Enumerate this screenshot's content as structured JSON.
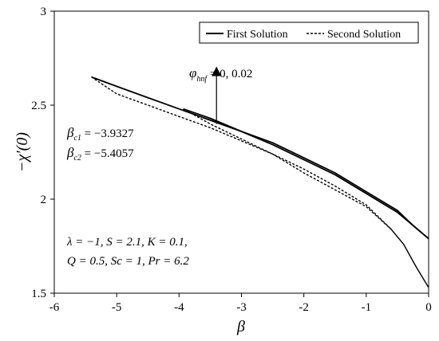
{
  "chart_data": {
    "type": "line",
    "xlabel": "β",
    "ylabel": "−χ′(0)",
    "xlim": [
      -6,
      0
    ],
    "ylim": [
      1.5,
      3
    ],
    "xticks": [
      -6,
      -5,
      -4,
      -3,
      -2,
      -1,
      0
    ],
    "yticks": [
      1.5,
      2,
      2.5,
      3
    ],
    "xtick_labels": [
      "-6",
      "-5",
      "-4",
      "-3",
      "-2",
      "-1",
      "0"
    ],
    "ytick_labels": [
      "1.5",
      "2",
      "2.5",
      "3"
    ],
    "grid": false,
    "legend": {
      "position": "top-right",
      "entries": [
        "First Solution",
        "Second Solution"
      ]
    },
    "series": [
      {
        "name": "First Solution",
        "style": "solid",
        "x": [
          -5.4057,
          -5.0,
          -4.5,
          -4.0,
          -3.5,
          -3.0,
          -2.5,
          -2.0,
          -1.5,
          -1.0,
          -0.5,
          -0.25,
          0.0
        ],
        "y": [
          2.65,
          2.6,
          2.54,
          2.48,
          2.42,
          2.36,
          2.3,
          2.22,
          2.14,
          2.04,
          1.94,
          1.86,
          1.79
        ]
      },
      {
        "name": "Second Solution",
        "style": "dashed",
        "x": [
          -5.4057,
          -5.0,
          -4.5,
          -4.0,
          -3.5,
          -3.0,
          -2.5,
          -2.0,
          -1.5,
          -1.0,
          -0.6,
          -0.4,
          -0.2,
          0.0
        ],
        "y": [
          2.65,
          2.56,
          2.5,
          2.44,
          2.38,
          2.31,
          2.24,
          2.16,
          2.07,
          1.97,
          1.84,
          1.76,
          1.64,
          1.53
        ]
      },
      {
        "style": "solid",
        "x": [
          -3.9327,
          -3.5,
          -3.0,
          -2.5,
          -2.0,
          -1.5,
          -1.0,
          -0.5,
          -0.25,
          0.0
        ],
        "y": [
          2.48,
          2.43,
          2.36,
          2.29,
          2.21,
          2.13,
          2.03,
          1.93,
          1.86,
          1.79
        ]
      },
      {
        "style": "dashed",
        "x": [
          -3.9327,
          -3.5,
          -3.0,
          -2.5,
          -2.0,
          -1.5,
          -1.0,
          -0.6,
          -0.4,
          -0.2,
          0.0
        ],
        "y": [
          2.48,
          2.4,
          2.32,
          2.24,
          2.14,
          2.05,
          1.96,
          1.84,
          1.76,
          1.64,
          1.53
        ]
      }
    ],
    "annotations": {
      "arrow_label_sym": "φ",
      "arrow_label_sub": "hnf",
      "arrow_label_rest": " = 0, 0.02",
      "arrow_x": -3.4,
      "arrow_y_from": 2.4,
      "arrow_y_to": 2.68,
      "bc1_sym": "β",
      "bc1_sub": "c1",
      "bc1_rest": " = −3.9327",
      "bc2_sym": "β",
      "bc2_sub": "c2",
      "bc2_rest": " = −5.4057",
      "params_line1": "λ = −1, S = 2.1, K = 0.1,",
      "params_line2": "Q = 0.5, Sc = 1, Pr = 6.2"
    }
  }
}
